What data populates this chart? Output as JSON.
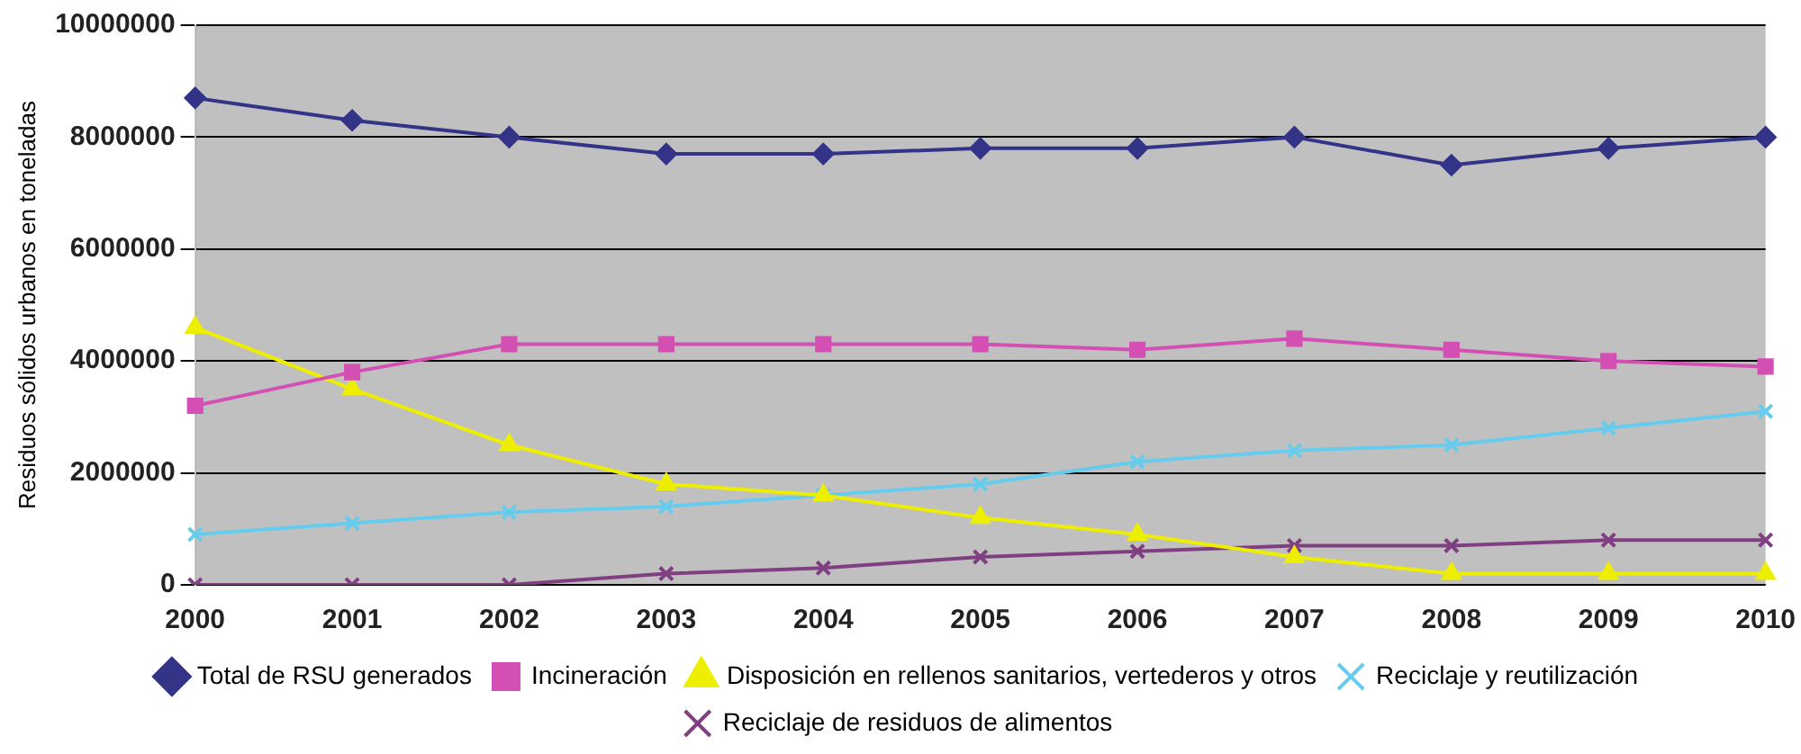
{
  "chart_data": {
    "type": "line",
    "ylabel": "Residuos sólidos urbanos en toneladas",
    "categories": [
      "2000",
      "2001",
      "2002",
      "2003",
      "2004",
      "2005",
      "2006",
      "2007",
      "2008",
      "2009",
      "2010"
    ],
    "series": [
      {
        "name": "Total de RSU generados",
        "color": "#333388",
        "marker": "diamond",
        "values": [
          8700000,
          8300000,
          8000000,
          7700000,
          7700000,
          7800000,
          7800000,
          8000000,
          7500000,
          7800000,
          8000000
        ]
      },
      {
        "name": "Incineración",
        "color": "#d44fb4",
        "marker": "square",
        "values": [
          3200000,
          3800000,
          4300000,
          4300000,
          4300000,
          4300000,
          4200000,
          4400000,
          4200000,
          4000000,
          3900000
        ]
      },
      {
        "name": "Disposición en rellenos sanitarios, vertederos y otros",
        "color": "#eeee00",
        "marker": "triangle",
        "values": [
          4600000,
          3500000,
          2500000,
          1800000,
          1600000,
          1200000,
          900000,
          500000,
          200000,
          200000,
          200000
        ]
      },
      {
        "name": "Reciclaje y reutilización",
        "color": "#66ccee",
        "marker": "cross",
        "values": [
          900000,
          1100000,
          1300000,
          1400000,
          1600000,
          1800000,
          2200000,
          2400000,
          2500000,
          2800000,
          3100000
        ]
      },
      {
        "name": "Reciclaje de residuos de alimentos",
        "color": "#7f3f80",
        "marker": "cross",
        "values": [
          0,
          0,
          0,
          200000,
          300000,
          500000,
          600000,
          700000,
          700000,
          800000,
          800000
        ]
      }
    ],
    "ylim": [
      0,
      10000000
    ],
    "yticks": [
      0,
      2000000,
      4000000,
      6000000,
      8000000,
      10000000
    ],
    "grid": "y",
    "legend": "bottom"
  }
}
